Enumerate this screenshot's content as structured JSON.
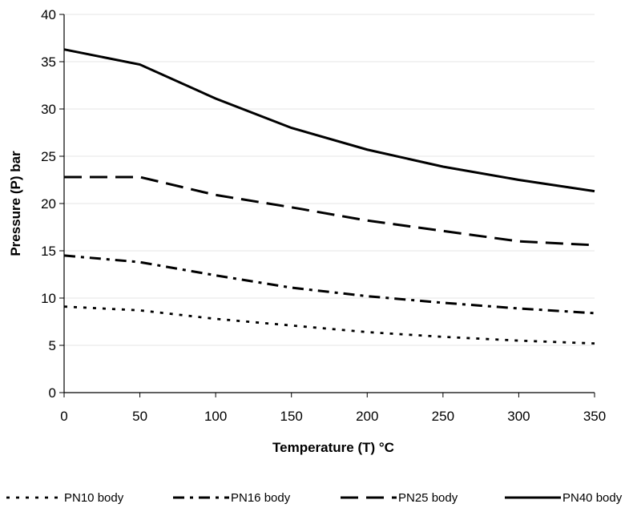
{
  "chart_data": {
    "type": "line",
    "title": "",
    "xlabel": "Temperature (T) °C",
    "ylabel": "Pressure (P) bar",
    "xlim": [
      0,
      350
    ],
    "ylim": [
      0,
      40
    ],
    "xticks": [
      "0",
      "50",
      "100",
      "150",
      "200",
      "250",
      "300",
      "350"
    ],
    "yticks": [
      "0",
      "5",
      "10",
      "15",
      "20",
      "25",
      "30",
      "35",
      "40"
    ],
    "grid": "horizontal",
    "legend_position": "bottom",
    "x": [
      0,
      50,
      100,
      150,
      200,
      250,
      300,
      350
    ],
    "series": [
      {
        "name": "PN10 body",
        "style": "dotted",
        "values": [
          9.1,
          8.7,
          7.8,
          7.1,
          6.4,
          5.9,
          5.5,
          5.2
        ]
      },
      {
        "name": "PN16 body",
        "style": "dash-dot",
        "values": [
          14.5,
          13.8,
          12.4,
          11.1,
          10.2,
          9.5,
          8.9,
          8.4
        ]
      },
      {
        "name": "PN25 body",
        "style": "dashed",
        "values": [
          22.8,
          22.8,
          20.9,
          19.6,
          18.2,
          17.1,
          16.0,
          15.6
        ]
      },
      {
        "name": "PN40 body",
        "style": "solid",
        "values": [
          36.3,
          34.7,
          31.1,
          28.0,
          25.7,
          23.9,
          22.5,
          21.3
        ]
      }
    ]
  }
}
